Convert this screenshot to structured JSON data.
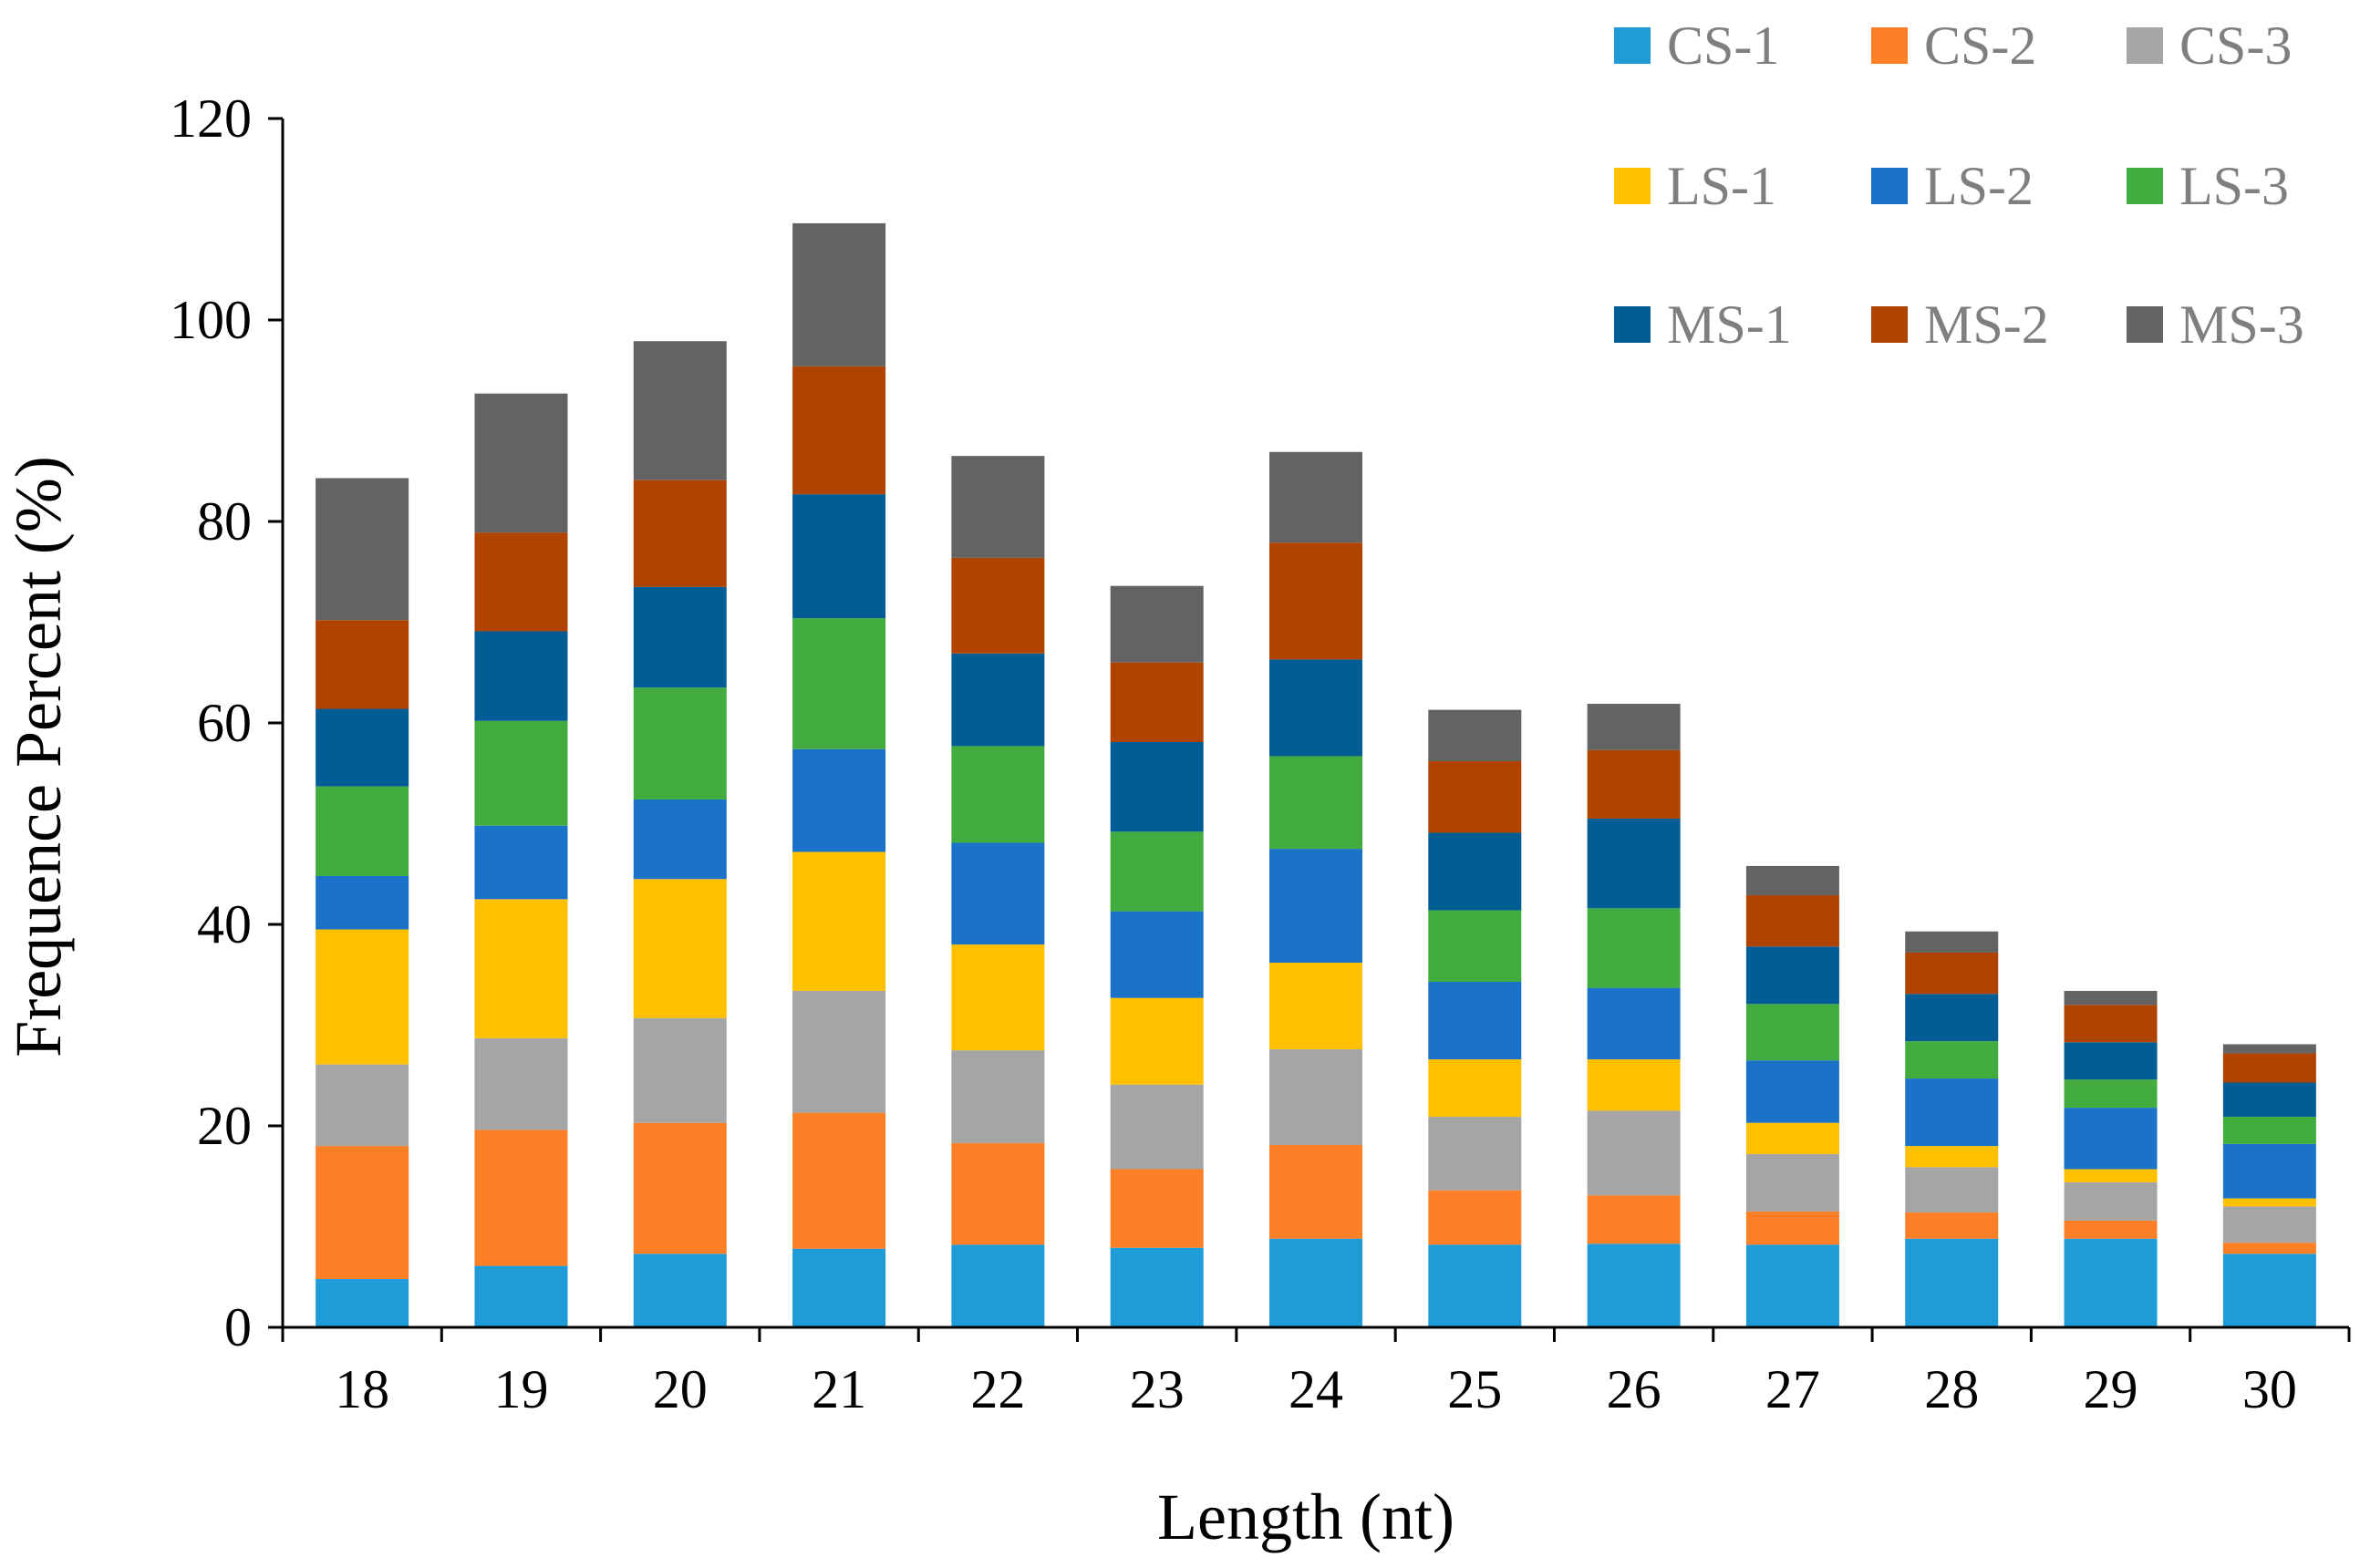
{
  "chart_data": {
    "type": "bar",
    "stacked": true,
    "title": "",
    "xlabel": "Length (nt)",
    "ylabel": "Frequence Percent (%)",
    "ylim": [
      0,
      120
    ],
    "yticks": [
      "0",
      "20",
      "40",
      "60",
      "80",
      "100",
      "120"
    ],
    "grid": false,
    "legend_position": "top-right",
    "categories": [
      "18",
      "19",
      "20",
      "21",
      "22",
      "23",
      "24",
      "25",
      "26",
      "27",
      "28",
      "29",
      "30"
    ],
    "series": [
      {
        "name": "CS-1",
        "color": "#1f9bd7",
        "values": [
          4.8,
          6.1,
          7.3,
          7.8,
          8.2,
          7.9,
          8.8,
          8.2,
          8.3,
          8.2,
          8.8,
          8.8,
          7.3
        ]
      },
      {
        "name": "CS-2",
        "color": "#fd7f26",
        "values": [
          13.2,
          13.5,
          13.0,
          13.5,
          10.1,
          7.8,
          9.3,
          5.4,
          4.8,
          3.3,
          2.6,
          1.8,
          1.1
        ]
      },
      {
        "name": "CS-3",
        "color": "#a5a5a5",
        "values": [
          8.1,
          9.1,
          10.4,
          12.1,
          9.2,
          8.4,
          9.5,
          7.3,
          8.4,
          5.7,
          4.5,
          3.8,
          3.6
        ]
      },
      {
        "name": "LS-1",
        "color": "#ffc000",
        "values": [
          13.4,
          13.8,
          13.8,
          13.8,
          10.5,
          8.6,
          8.6,
          5.7,
          5.1,
          3.1,
          2.1,
          1.3,
          0.8
        ]
      },
      {
        "name": "LS-2",
        "color": "#1a73c9",
        "values": [
          5.3,
          7.3,
          7.9,
          10.2,
          10.1,
          8.6,
          11.3,
          7.7,
          7.1,
          6.2,
          6.7,
          6.1,
          5.4
        ]
      },
      {
        "name": "LS-3",
        "color": "#42ad3e",
        "values": [
          8.9,
          10.4,
          11.1,
          13.0,
          9.6,
          7.9,
          9.2,
          7.1,
          7.9,
          5.6,
          3.7,
          2.8,
          2.7
        ]
      },
      {
        "name": "MS-1",
        "color": "#025d95",
        "values": [
          7.7,
          8.9,
          10.0,
          12.3,
          9.2,
          8.9,
          9.6,
          7.7,
          8.9,
          5.7,
          4.7,
          3.7,
          3.4
        ]
      },
      {
        "name": "MS-2",
        "color": "#b14301",
        "values": [
          8.8,
          9.8,
          10.6,
          12.7,
          9.5,
          7.9,
          11.6,
          7.1,
          6.8,
          5.1,
          4.1,
          3.7,
          2.9
        ]
      },
      {
        "name": "MS-3",
        "color": "#636363",
        "values": [
          14.1,
          13.8,
          13.8,
          14.2,
          10.1,
          7.6,
          9.0,
          5.1,
          4.6,
          2.9,
          2.1,
          1.4,
          0.9
        ]
      }
    ]
  }
}
